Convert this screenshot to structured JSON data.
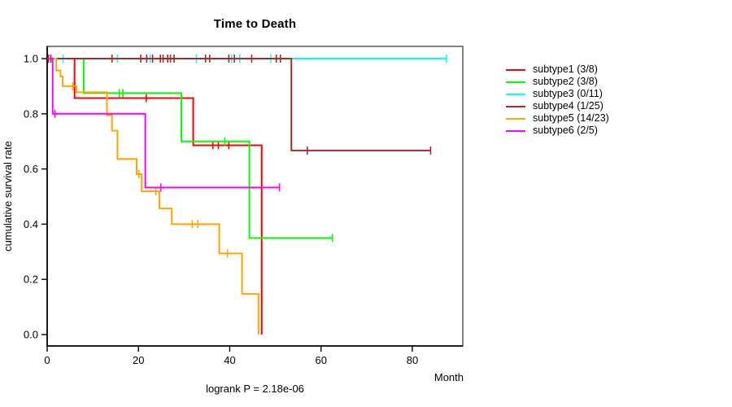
{
  "chart_data": {
    "type": "line",
    "variant": "kaplan-meier-step",
    "title": "Time to Death",
    "xlabel": "Month",
    "ylabel": "cumulative survival rate",
    "annotation": "logrank P = 2.18e-06",
    "xlim": [
      0,
      91
    ],
    "ylim": [
      0.0,
      1.0
    ],
    "x_ticks": [
      "0",
      "20",
      "40",
      "60",
      "80"
    ],
    "y_ticks": [
      "0.0",
      "0.2",
      "0.4",
      "0.6",
      "0.8",
      "1.0"
    ],
    "grid": false,
    "legend_position": "right-outside",
    "axis_color": "#000000",
    "box_color": "#808080",
    "background_color": "#ffffff",
    "series": [
      {
        "name": "subtype1 (3/8)",
        "color": "#FF0000",
        "steps": [
          [
            0,
            1.0
          ],
          [
            6,
            0.857
          ],
          [
            32,
            0.686
          ],
          [
            47,
            0.0
          ]
        ],
        "censors": [
          [
            21.7,
            0.857
          ],
          [
            36.3,
            0.686
          ],
          [
            37.5,
            0.686
          ],
          [
            39.8,
            0.686
          ]
        ],
        "end_month": 47
      },
      {
        "name": "subtype2 (3/8)",
        "color": "#00FF00",
        "steps": [
          [
            0,
            1.0
          ],
          [
            8,
            0.875
          ],
          [
            29.4,
            0.7
          ],
          [
            44.3,
            0.35
          ]
        ],
        "censors": [
          [
            15.8,
            0.875
          ],
          [
            16.6,
            0.875
          ],
          [
            38.9,
            0.7
          ],
          [
            62.5,
            0.35
          ]
        ],
        "end_month": 62.5
      },
      {
        "name": "subtype3 (0/11)",
        "color": "#00FFFF",
        "steps": [
          [
            0,
            1.0
          ]
        ],
        "censors": [
          [
            3.5,
            1.0
          ],
          [
            15.4,
            1.0
          ],
          [
            22.6,
            1.0
          ],
          [
            32.7,
            1.0
          ],
          [
            40.4,
            1.0
          ],
          [
            42.2,
            1.0
          ],
          [
            49,
            1.0
          ],
          [
            87.5,
            1.0
          ]
        ],
        "end_month": 87.5
      },
      {
        "name": "subtype4 (1/25)",
        "color": "#A52A2A",
        "steps": [
          [
            0,
            1.0
          ],
          [
            53.5,
            0.667
          ]
        ],
        "censors": [
          [
            0.3,
            1.0
          ],
          [
            0.8,
            1.0
          ],
          [
            14.2,
            1.0
          ],
          [
            20.5,
            1.0
          ],
          [
            21.8,
            1.0
          ],
          [
            23.1,
            1.0
          ],
          [
            24.8,
            1.0
          ],
          [
            25.4,
            1.0
          ],
          [
            26.4,
            1.0
          ],
          [
            27.0,
            1.0
          ],
          [
            27.8,
            1.0
          ],
          [
            34.7,
            1.0
          ],
          [
            35.6,
            1.0
          ],
          [
            39.8,
            1.0
          ],
          [
            41.0,
            1.0
          ],
          [
            44.8,
            1.0
          ],
          [
            50.2,
            1.0
          ],
          [
            51.1,
            1.0
          ],
          [
            57.0,
            0.667
          ],
          [
            84.0,
            0.667
          ]
        ],
        "end_month": 84
      },
      {
        "name": "subtype5 (14/23)",
        "color": "#FFA500",
        "steps": [
          [
            0,
            1.0
          ],
          [
            2,
            0.957
          ],
          [
            2.9,
            0.935
          ],
          [
            3.4,
            0.9
          ],
          [
            6.4,
            0.878
          ],
          [
            13.1,
            0.795
          ],
          [
            14.2,
            0.739
          ],
          [
            15.4,
            0.636
          ],
          [
            19.6,
            0.581
          ],
          [
            20.7,
            0.519
          ],
          [
            24.6,
            0.457
          ],
          [
            27.3,
            0.4
          ],
          [
            37.7,
            0.294
          ],
          [
            42.7,
            0.147
          ],
          [
            46.3,
            0.0
          ]
        ],
        "censors": [
          [
            5.6,
            0.9
          ],
          [
            20.1,
            0.581
          ],
          [
            23.8,
            0.519
          ],
          [
            31.8,
            0.4
          ],
          [
            33.0,
            0.4
          ],
          [
            39.5,
            0.294
          ]
        ],
        "end_month": 46.3
      },
      {
        "name": "subtype6 (2/5)",
        "color": "#FF00FF",
        "steps": [
          [
            0,
            1.0
          ],
          [
            1.2,
            0.8
          ],
          [
            21.5,
            0.533
          ]
        ],
        "censors": [
          [
            1.7,
            0.8
          ],
          [
            24.9,
            0.533
          ],
          [
            50.9,
            0.533
          ]
        ],
        "end_month": 50.9
      }
    ]
  }
}
